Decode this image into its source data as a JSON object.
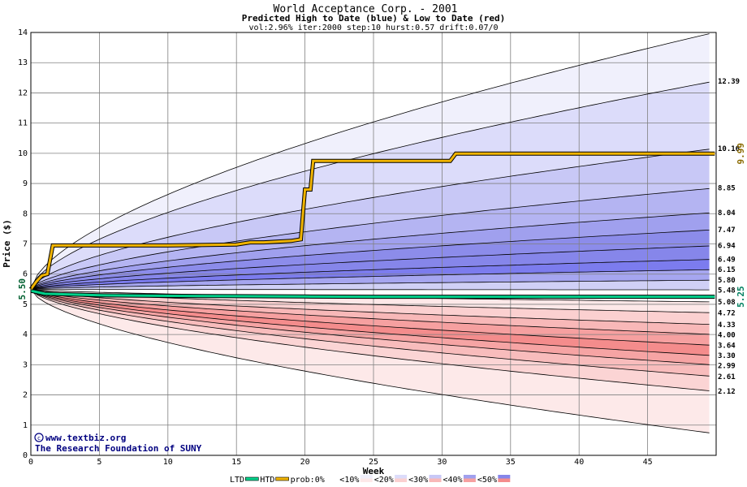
{
  "chart_data": {
    "type": "area",
    "title": "World Acceptance Corp. - 2001",
    "subtitle": "Predicted High to Date (blue) &  Low to Date (red)",
    "params": "vol:2.96% iter:2000 step:10 hurst:0.57 drift:0.07/0",
    "xlabel": "Week",
    "ylabel": "Price ($)",
    "xlim": [
      0,
      50
    ],
    "ylim": [
      0,
      14
    ],
    "x_ticks": [
      0,
      5,
      10,
      15,
      20,
      25,
      30,
      35,
      40,
      45
    ],
    "y_ticks": [
      0,
      1,
      2,
      3,
      4,
      5,
      6,
      7,
      8,
      9,
      10,
      11,
      12,
      13,
      14
    ],
    "grid": true,
    "start_price": 5.5,
    "start_label": "5.50",
    "htd_end_label": "9.99",
    "ltd_end_label": "5.25",
    "right_labels": [
      "12.39",
      "10.16",
      "8.85",
      "8.04",
      "7.47",
      "6.94",
      "6.49",
      "6.15",
      "5.80",
      "5.48",
      "5.08",
      "4.72",
      "4.33",
      "4.00",
      "3.64",
      "3.30",
      "2.99",
      "2.61",
      "2.12"
    ],
    "high_quantiles": [
      {
        "end": 14.0
      },
      {
        "end": 12.39
      },
      {
        "end": 10.16
      },
      {
        "end": 8.85
      },
      {
        "end": 8.04
      },
      {
        "end": 7.47
      },
      {
        "end": 6.94
      },
      {
        "end": 6.49
      },
      {
        "end": 6.15
      },
      {
        "end": 5.8
      },
      {
        "end": 5.48
      }
    ],
    "low_quantiles": [
      {
        "end": 5.08
      },
      {
        "end": 4.72
      },
      {
        "end": 4.33
      },
      {
        "end": 4.0
      },
      {
        "end": 3.64
      },
      {
        "end": 3.3
      },
      {
        "end": 2.99
      },
      {
        "end": 2.61
      },
      {
        "end": 2.12
      },
      {
        "end": 0.72
      }
    ],
    "htd_series": {
      "name": "HTD",
      "x": [
        0,
        0.4,
        0.8,
        1.2,
        1.6,
        5,
        10,
        15,
        16,
        17,
        19,
        19.7,
        20,
        20.4,
        20.6,
        21,
        30,
        30.6,
        31,
        35,
        40,
        45,
        49.9
      ],
      "y": [
        5.5,
        5.75,
        5.95,
        6.0,
        6.95,
        6.95,
        6.95,
        6.98,
        7.05,
        7.05,
        7.1,
        7.15,
        8.8,
        8.8,
        9.75,
        9.75,
        9.75,
        9.75,
        9.99,
        9.99,
        9.99,
        9.99,
        9.99
      ]
    },
    "ltd_series": {
      "name": "LTD",
      "x": [
        0,
        1,
        5,
        10,
        15,
        20,
        25,
        30,
        35,
        40,
        45,
        49.9
      ],
      "y": [
        5.45,
        5.35,
        5.3,
        5.28,
        5.27,
        5.26,
        5.25,
        5.25,
        5.25,
        5.25,
        5.25,
        5.25
      ]
    },
    "legend": {
      "placement": "bottom",
      "items": [
        "LTD",
        "HTD",
        "prob:0%",
        "<10%",
        "<20%",
        "<30%",
        "<40%",
        "<50%"
      ]
    },
    "colors": {
      "high_bands": [
        "#f0f0fc",
        "#dcdcfa",
        "#c8c8f6",
        "#b4b4f2",
        "#a0a0ee",
        "#8c8cea",
        "#8686ea",
        "#7c7cee",
        "#a6a6f0",
        "#d0d0f6"
      ],
      "low_bands": [
        "#fde8e8",
        "#fbd0d0",
        "#f8b8b8",
        "#f6a0a0",
        "#f48c8c",
        "#f6a4a4",
        "#f8bcbc",
        "#fbd4d4",
        "#fde9e9"
      ],
      "htd": "#f0b400",
      "ltd": "#00d08a",
      "grid": "#808080",
      "frame": "#000000",
      "credit": "#000080",
      "start_label": "#006030",
      "htd_label": "#8a6a00",
      "ltd_label": "#008060"
    },
    "credit": {
      "line1": "www.textbiz.org",
      "line2": "The Research Foundation of SUNY"
    }
  }
}
